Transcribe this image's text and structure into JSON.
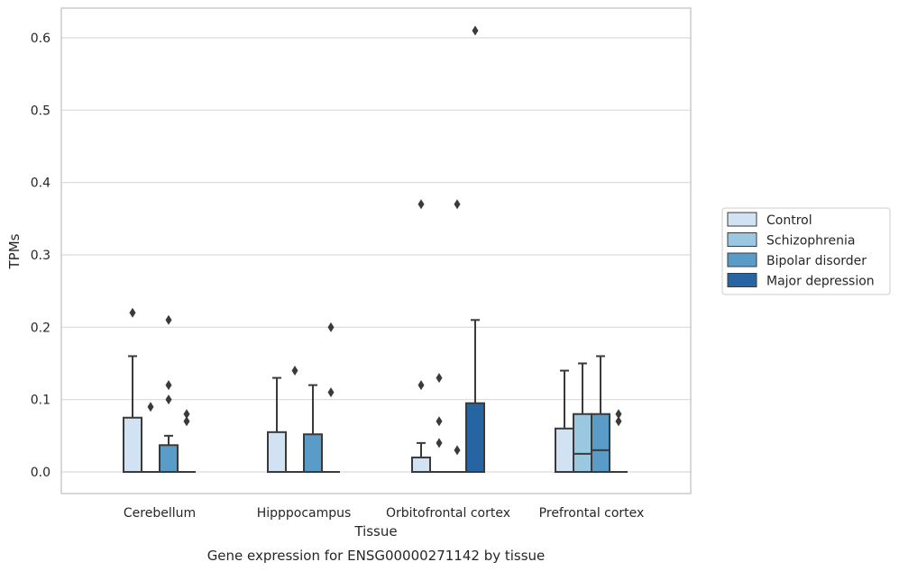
{
  "chart_data": {
    "type": "box",
    "xlabel": "Tissue",
    "ylabel": "TPMs",
    "caption": "Gene expression for ENSG00000271142 by tissue",
    "ylim": [
      -0.03,
      0.64
    ],
    "yticks": [
      0.0,
      0.1,
      0.2,
      0.3,
      0.4,
      0.5,
      0.6
    ],
    "ytick_labels": [
      "0.0",
      "0.1",
      "0.2",
      "0.3",
      "0.4",
      "0.5",
      "0.6"
    ],
    "grid": "horizontal",
    "legend_position": "right",
    "categories": [
      "Cerebellum",
      "Hipppocampus",
      "Orbitofrontal cortex",
      "Prefrontal cortex"
    ],
    "series": [
      {
        "name": "Control",
        "color": "#d1e2f2",
        "boxes": [
          {
            "q1": 0,
            "median": 0,
            "q3": 0.075,
            "whisker_low": 0,
            "whisker_high": 0.16,
            "outliers": [
              0.22
            ]
          },
          {
            "q1": 0,
            "median": 0,
            "q3": 0.055,
            "whisker_low": 0,
            "whisker_high": 0.13,
            "outliers": []
          },
          {
            "q1": 0,
            "median": 0,
            "q3": 0.02,
            "whisker_low": 0,
            "whisker_high": 0.04,
            "outliers": [
              0.12,
              0.37
            ]
          },
          {
            "q1": 0,
            "median": 0,
            "q3": 0.06,
            "whisker_low": 0,
            "whisker_high": 0.14,
            "outliers": []
          }
        ]
      },
      {
        "name": "Schizophrenia",
        "color": "#9ac8e0",
        "boxes": [
          {
            "q1": 0,
            "median": 0,
            "q3": 0,
            "whisker_low": 0,
            "whisker_high": 0,
            "outliers": [
              0.09
            ]
          },
          {
            "q1": 0,
            "median": 0,
            "q3": 0,
            "whisker_low": 0,
            "whisker_high": 0,
            "outliers": [
              0.14
            ]
          },
          {
            "q1": 0,
            "median": 0,
            "q3": 0,
            "whisker_low": 0,
            "whisker_high": 0,
            "outliers": [
              0.04,
              0.07,
              0.13
            ]
          },
          {
            "q1": 0,
            "median": 0.025,
            "q3": 0.08,
            "whisker_low": 0,
            "whisker_high": 0.15,
            "outliers": []
          }
        ]
      },
      {
        "name": "Bipolar disorder",
        "color": "#5a9cc8",
        "boxes": [
          {
            "q1": 0,
            "median": 0,
            "q3": 0.037,
            "whisker_low": 0,
            "whisker_high": 0.05,
            "outliers": [
              0.1,
              0.12,
              0.21
            ]
          },
          {
            "q1": 0,
            "median": 0,
            "q3": 0.052,
            "whisker_low": 0,
            "whisker_high": 0.12,
            "outliers": []
          },
          {
            "q1": 0,
            "median": 0,
            "q3": 0,
            "whisker_low": 0,
            "whisker_high": 0,
            "outliers": [
              0.03,
              0.37
            ]
          },
          {
            "q1": 0,
            "median": 0.03,
            "q3": 0.08,
            "whisker_low": 0,
            "whisker_high": 0.16,
            "outliers": []
          }
        ]
      },
      {
        "name": "Major depression",
        "color": "#2765a2",
        "boxes": [
          {
            "q1": 0,
            "median": 0,
            "q3": 0,
            "whisker_low": 0,
            "whisker_high": 0,
            "outliers": [
              0.07,
              0.08
            ]
          },
          {
            "q1": 0,
            "median": 0,
            "q3": 0,
            "whisker_low": 0,
            "whisker_high": 0,
            "outliers": [
              0.11,
              0.2
            ]
          },
          {
            "q1": 0,
            "median": 0,
            "q3": 0.095,
            "whisker_low": 0,
            "whisker_high": 0.21,
            "outliers": [
              0.61
            ]
          },
          {
            "q1": 0,
            "median": 0,
            "q3": 0,
            "whisker_low": 0,
            "whisker_high": 0,
            "outliers": [
              0.07,
              0.08
            ]
          }
        ]
      }
    ]
  }
}
